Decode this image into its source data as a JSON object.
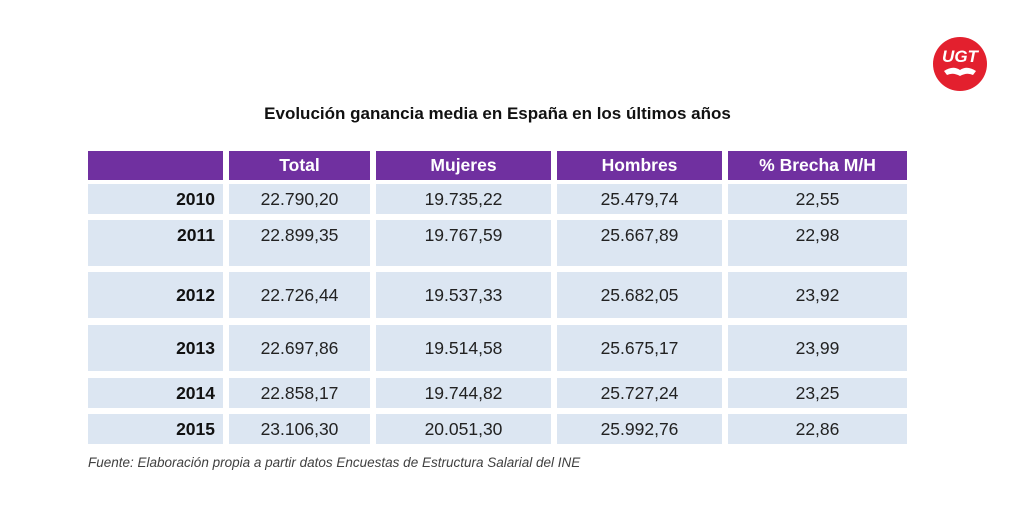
{
  "title": "Evolución ganancia media en España en los últimos años",
  "logo_text": "UGT",
  "colors": {
    "header": "#7030a0",
    "row": "#dce6f2",
    "logo": "#e3202e"
  },
  "table": {
    "headers": [
      "",
      "Total",
      "Mujeres",
      "Hombres",
      "% Brecha M/H"
    ],
    "rows": [
      [
        "2010",
        "22.790,20",
        "19.735,22",
        "25.479,74",
        "22,55"
      ],
      [
        "2011",
        "22.899,35",
        "19.767,59",
        "25.667,89",
        "22,98"
      ],
      [
        "2012",
        "22.726,44",
        "19.537,33",
        "25.682,05",
        "23,92"
      ],
      [
        "2013",
        "22.697,86",
        "19.514,58",
        "25.675,17",
        "23,99"
      ],
      [
        "2014",
        "22.858,17",
        "19.744,82",
        "25.727,24",
        "23,25"
      ],
      [
        "2015",
        "23.106,30",
        "20.051,30",
        "25.992,76",
        "22,86"
      ]
    ]
  },
  "footnote": "Fuente: Elaboración propia a partir datos Encuestas de Estructura Salarial  del INE"
}
